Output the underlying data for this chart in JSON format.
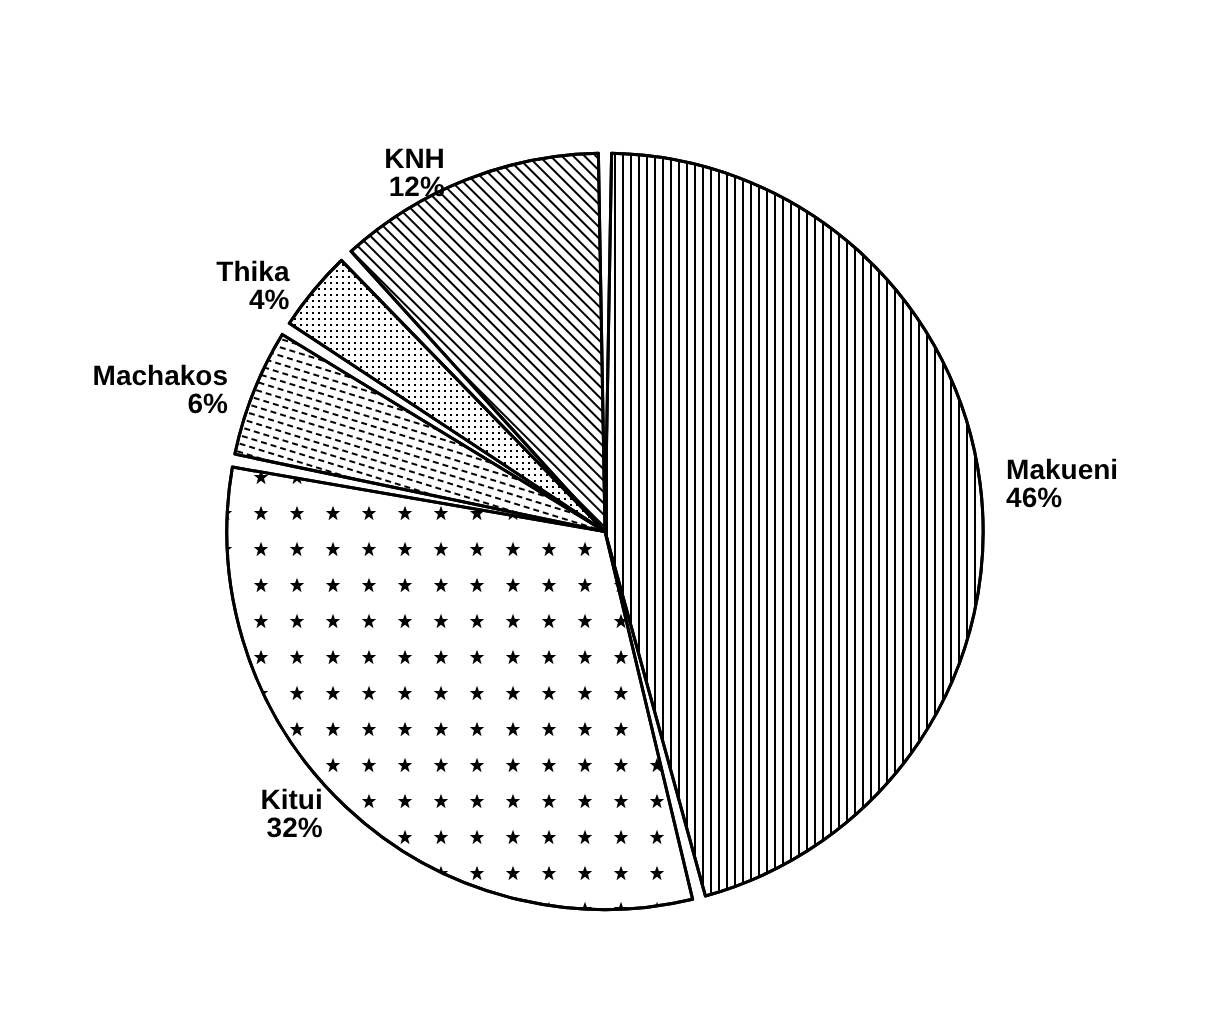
{
  "chart_data": {
    "type": "pie",
    "categories": [
      "Makueni",
      "Kitui",
      "Machakos",
      "Thika",
      "KNH"
    ],
    "values": [
      46,
      32,
      6,
      4,
      12
    ],
    "colors": [
      "#ffffff",
      "#ffffff",
      "#ffffff",
      "#ffffff",
      "#ffffff"
    ],
    "value_labels": [
      "46%",
      "32%",
      "6%",
      "4%",
      "12%"
    ]
  }
}
